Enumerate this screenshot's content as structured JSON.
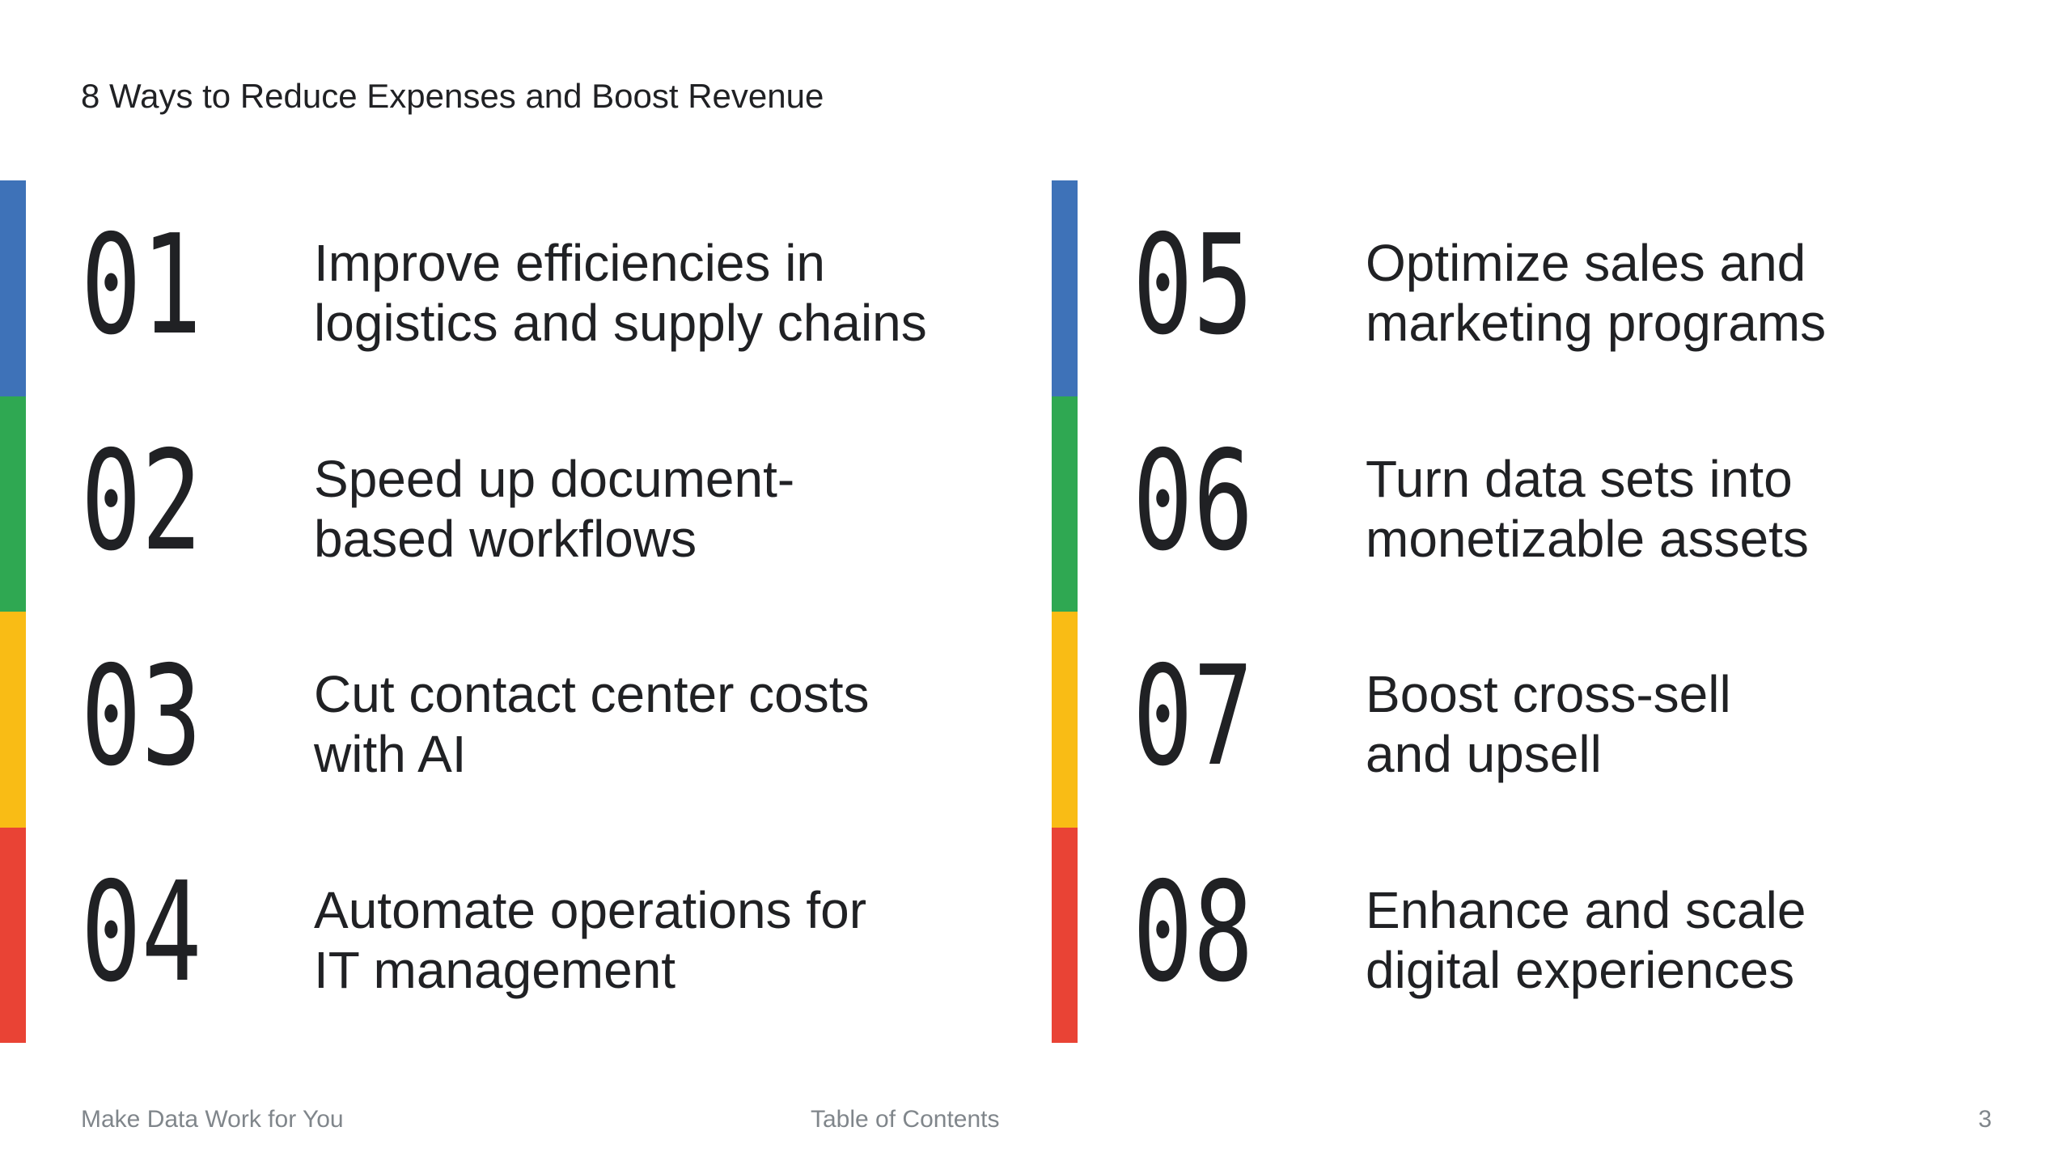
{
  "slide": {
    "title": "8 Ways to Reduce Expenses and Boost Revenue"
  },
  "colors": {
    "blue": "#3E72B8",
    "green": "#2FA852",
    "yellow": "#F9BC15",
    "red": "#E94335",
    "text_dark": "#202124",
    "text_muted": "#80868B",
    "background": "#FFFFFF"
  },
  "items": [
    {
      "number": "01",
      "line1": "Improve efficiencies in",
      "line2": "logistics and supply chains",
      "accent": "#3E72B8"
    },
    {
      "number": "02",
      "line1": "Speed up document-",
      "line2": "based workflows",
      "accent": "#2FA852"
    },
    {
      "number": "03",
      "line1": "Cut contact center costs",
      "line2": "with AI",
      "accent": "#F9BC15"
    },
    {
      "number": "04",
      "line1": "Automate operations for",
      "line2": "IT management",
      "accent": "#E94335"
    },
    {
      "number": "05",
      "line1": "Optimize sales and",
      "line2": "marketing programs",
      "accent": "#3E72B8"
    },
    {
      "number": "06",
      "line1": "Turn data sets into",
      "line2": "monetizable assets",
      "accent": "#2FA852"
    },
    {
      "number": "07",
      "line1": "Boost cross-sell",
      "line2": "and upsell",
      "accent": "#F9BC15"
    },
    {
      "number": "08",
      "line1": "Enhance and scale",
      "line2": "digital experiences",
      "accent": "#E94335"
    }
  ],
  "footer": {
    "left": "Make Data Work for You",
    "center": "Table of Contents",
    "page_number": "3"
  }
}
